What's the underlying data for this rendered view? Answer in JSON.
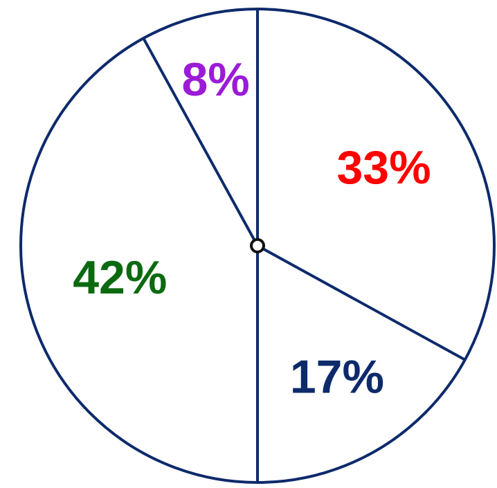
{
  "chart_data": {
    "type": "pie",
    "title": "",
    "start": "top",
    "direction": "clockwise",
    "slices": [
      {
        "value": 33,
        "label": "33%",
        "color": "#ff0000"
      },
      {
        "value": 17,
        "label": "17%",
        "color": "#0d2a6b"
      },
      {
        "value": 42,
        "label": "42%",
        "color": "#0b6a10"
      },
      {
        "value": 8,
        "label": "8%",
        "color": "#9b1bd6"
      }
    ],
    "outline_color": "#0d2a6b",
    "fill_color": "#ffffff",
    "legend": "none"
  }
}
